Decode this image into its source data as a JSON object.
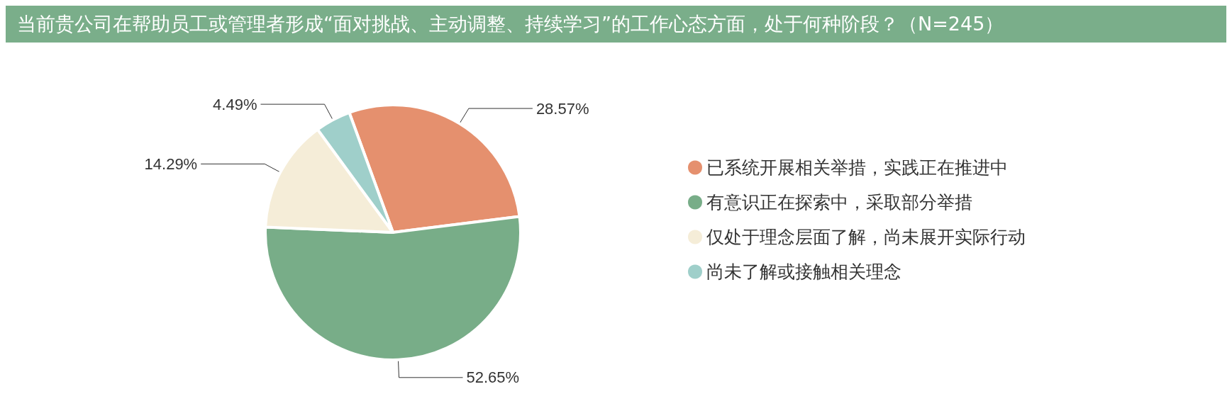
{
  "chart_data": {
    "type": "pie",
    "title": "当前贵公司在帮助员工或管理者形成“面对挑战、主动调整、持续学习”的工作心态方面，处于何种阶段？（N=245）",
    "categories": [
      "已系统开展相关举措，实践正在推进中",
      "有意识正在探索中，采取部分举措",
      "仅处于理念层面了解，尚未展开实际行动",
      "尚未了解或接触相关理念"
    ],
    "values": [
      28.57,
      52.65,
      14.29,
      4.49
    ],
    "colors": [
      "#e5906e",
      "#78ad88",
      "#f5edd8",
      "#9fcfca"
    ],
    "value_labels": [
      "28.57%",
      "52.65%",
      "14.29%",
      "4.49%"
    ],
    "legend": "right"
  }
}
